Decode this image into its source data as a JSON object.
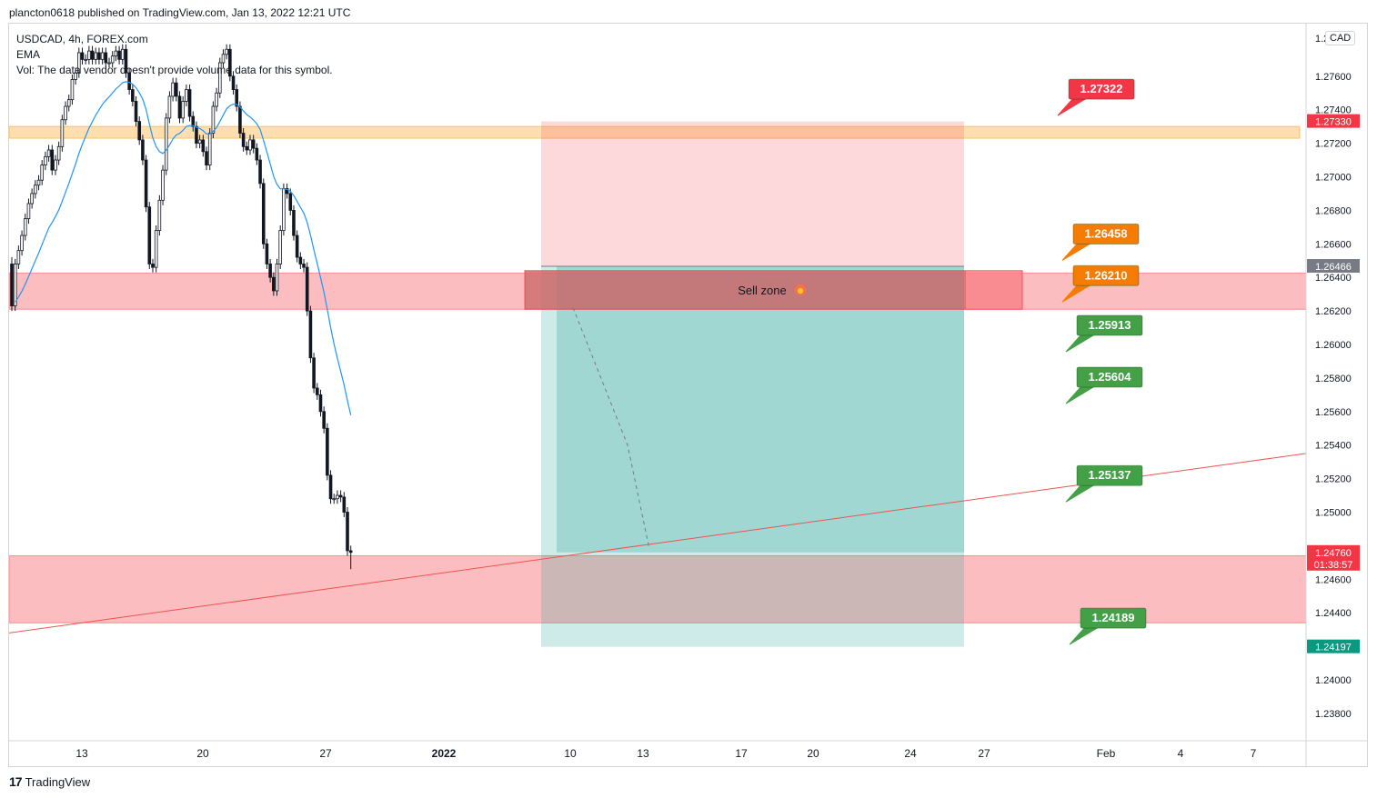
{
  "header": {
    "published_by": "plancton0618 published on TradingView.com, Jan 13, 2022 12:21 UTC"
  },
  "legend": {
    "symbol_line": "USDCAD, 4h, FOREX.com",
    "indicator": "EMA",
    "volume_note": "Vol: The data vendor doesn't provide volume data for this symbol."
  },
  "currency_badge": "CAD",
  "footer": {
    "brand": "TradingView",
    "logo_glyph": "17"
  },
  "colors": {
    "bull": "#131722",
    "bear": "#131722",
    "ema": "#2196f3",
    "sell_zone": "#f77c80",
    "profit_box": "#26a69a",
    "stop_box": "#f7525f",
    "support": "#ef5350",
    "orange_band": "#ffb74d",
    "label_green": "#43a047",
    "label_orange": "#f57c00",
    "label_red": "#f23645"
  },
  "chart_data": {
    "type": "candlestick",
    "title": "USDCAD, 4h, FOREX.com",
    "y_axis": {
      "side": "right",
      "range": [
        1.236,
        1.2776
      ],
      "ticks": [
        1.238,
        1.24,
        1.244,
        1.246,
        1.25,
        1.252,
        1.254,
        1.256,
        1.258,
        1.26,
        1.262,
        1.264,
        1.266,
        1.268,
        1.27,
        1.272,
        1.274,
        1.276
      ],
      "tick_labels": [
        "1.23800",
        "1.24000",
        "1.24400",
        "1.24600",
        "1.25000",
        "1.25200",
        "1.25400",
        "1.25600",
        "1.25800",
        "1.26000",
        "1.26200",
        "1.26400",
        "1.26600",
        "1.26800",
        "1.27000",
        "1.27200",
        "1.27400",
        "1.27600"
      ],
      "top_partial_label": "1.2"
    },
    "x_axis": {
      "ticks": [
        {
          "label": "13",
          "bold": false
        },
        {
          "label": "20",
          "bold": false
        },
        {
          "label": "27",
          "bold": false
        },
        {
          "label": "2022",
          "bold": true
        },
        {
          "label": "10",
          "bold": false
        },
        {
          "label": "13",
          "bold": false
        },
        {
          "label": "17",
          "bold": false
        },
        {
          "label": "20",
          "bold": false
        },
        {
          "label": "24",
          "bold": false
        },
        {
          "label": "27",
          "bold": false
        },
        {
          "label": "Feb",
          "bold": false
        },
        {
          "label": "4",
          "bold": false
        },
        {
          "label": "7",
          "bold": false
        }
      ]
    },
    "price_tags": [
      {
        "label": "1.27330",
        "value": 1.2733,
        "color": "#f23645"
      },
      {
        "label": "1.26466",
        "value": 1.26466,
        "color": "#787b86"
      },
      {
        "label": "1.24760",
        "sub": "01:38:57",
        "value": 1.2476,
        "color": "#f23645"
      },
      {
        "label": "1.24197",
        "value": 1.24197,
        "color": "#089981"
      }
    ],
    "callouts": [
      {
        "label": "1.27322",
        "value": 1.27322,
        "color": "#f23645"
      },
      {
        "label": "1.26458",
        "value": 1.26458,
        "color": "#f57c00"
      },
      {
        "label": "1.26210",
        "value": 1.2621,
        "color": "#f57c00"
      },
      {
        "label": "1.25913",
        "value": 1.25913,
        "color": "#43a047"
      },
      {
        "label": "1.25604",
        "value": 1.25604,
        "color": "#43a047"
      },
      {
        "label": "1.25137",
        "value": 1.25137,
        "color": "#43a047"
      },
      {
        "label": "1.24189",
        "value": 1.24189,
        "color": "#43a047"
      }
    ],
    "zones": [
      {
        "name": "resistance-band",
        "from": 1.2723,
        "to": 1.273,
        "color": "#ffb74d"
      },
      {
        "name": "supply-band",
        "from": 1.2621,
        "to": 1.26426,
        "color": "#f77c80"
      },
      {
        "name": "demand-band",
        "from": 1.2434,
        "to": 1.2474,
        "color": "#f77c80"
      }
    ],
    "sell_zone": {
      "label": "Sell zone",
      "from": 1.2621,
      "to": 1.2644
    },
    "short_position": {
      "entry": 1.26466,
      "stop": 1.2733,
      "target": 1.24197
    },
    "trendline": {
      "start": 1.2428,
      "end": 1.2535
    },
    "candles": {
      "open": [
        1.2648,
        1.2623,
        1.2648,
        1.2656,
        1.2665,
        1.2675,
        1.2684,
        1.269,
        1.2695,
        1.2698,
        1.2707,
        1.2712,
        1.2716,
        1.2704,
        1.271,
        1.2718,
        1.2734,
        1.2742,
        1.2746,
        1.2758,
        1.2762,
        1.2774,
        1.277,
        1.277,
        1.2775,
        1.277,
        1.2774,
        1.277,
        1.2774,
        1.2768,
        1.2768,
        1.2772,
        1.2775,
        1.277,
        1.2776,
        1.2762,
        1.2752,
        1.2745,
        1.2733,
        1.2722,
        1.271,
        1.2682,
        1.2648,
        1.2646,
        1.2668,
        1.2686,
        1.2704,
        1.2735,
        1.2748,
        1.2756,
        1.2748,
        1.2735,
        1.2745,
        1.2752,
        1.2736,
        1.273,
        1.272,
        1.2722,
        1.2715,
        1.2707,
        1.2726,
        1.2742,
        1.275,
        1.2768,
        1.2773,
        1.2776,
        1.276,
        1.2752,
        1.2742,
        1.2726,
        1.2718,
        1.2716,
        1.2722,
        1.2717,
        1.271,
        1.2696,
        1.266,
        1.2648,
        1.264,
        1.2632,
        1.2648,
        1.2668,
        1.2693,
        1.269,
        1.268,
        1.2665,
        1.2652,
        1.2648,
        1.2646,
        1.262,
        1.2592,
        1.2574,
        1.257,
        1.256,
        1.255,
        1.2522,
        1.2508,
        1.2508,
        1.251,
        1.2509,
        1.25,
        1.2477
      ],
      "close": [
        1.2623,
        1.2648,
        1.2656,
        1.2665,
        1.2675,
        1.2684,
        1.269,
        1.2695,
        1.2698,
        1.2707,
        1.2712,
        1.2716,
        1.2704,
        1.271,
        1.2718,
        1.2734,
        1.2742,
        1.2746,
        1.2758,
        1.2762,
        1.2774,
        1.277,
        1.277,
        1.2775,
        1.277,
        1.2774,
        1.277,
        1.2774,
        1.2768,
        1.2768,
        1.2772,
        1.2775,
        1.277,
        1.2776,
        1.2762,
        1.2752,
        1.2745,
        1.2733,
        1.2722,
        1.271,
        1.2682,
        1.2648,
        1.2646,
        1.2668,
        1.2686,
        1.2704,
        1.2735,
        1.2748,
        1.2756,
        1.2748,
        1.2735,
        1.2745,
        1.2752,
        1.2736,
        1.273,
        1.272,
        1.2722,
        1.2715,
        1.2707,
        1.2726,
        1.2742,
        1.275,
        1.2768,
        1.2773,
        1.2776,
        1.276,
        1.2752,
        1.2742,
        1.2726,
        1.2718,
        1.2716,
        1.2722,
        1.2717,
        1.271,
        1.2696,
        1.266,
        1.2648,
        1.264,
        1.2632,
        1.2648,
        1.2668,
        1.2693,
        1.269,
        1.268,
        1.2665,
        1.2652,
        1.2648,
        1.2646,
        1.262,
        1.2592,
        1.2574,
        1.257,
        1.256,
        1.255,
        1.2522,
        1.2508,
        1.2508,
        1.251,
        1.2509,
        1.25,
        1.2477,
        1.2476
      ],
      "high": [
        1.2652,
        1.2651,
        1.2659,
        1.2668,
        1.2678,
        1.2687,
        1.2693,
        1.2698,
        1.2701,
        1.271,
        1.2715,
        1.2719,
        1.2719,
        1.2713,
        1.2721,
        1.2737,
        1.2745,
        1.2749,
        1.2761,
        1.2765,
        1.2777,
        1.2777,
        1.2773,
        1.2778,
        1.2778,
        1.2777,
        1.2777,
        1.2777,
        1.2777,
        1.2771,
        1.2775,
        1.2778,
        1.2778,
        1.2779,
        1.2779,
        1.2765,
        1.2755,
        1.2748,
        1.2736,
        1.2725,
        1.2713,
        1.2685,
        1.2651,
        1.2671,
        1.2689,
        1.2707,
        1.2738,
        1.2751,
        1.2759,
        1.2759,
        1.2751,
        1.2748,
        1.2755,
        1.2755,
        1.2739,
        1.2733,
        1.2725,
        1.2725,
        1.2718,
        1.2729,
        1.2745,
        1.2753,
        1.2771,
        1.2776,
        1.2779,
        1.2779,
        1.2763,
        1.2755,
        1.2745,
        1.2729,
        1.2721,
        1.2725,
        1.2725,
        1.272,
        1.2713,
        1.2699,
        1.2663,
        1.2651,
        1.2643,
        1.2651,
        1.2671,
        1.2696,
        1.2696,
        1.2693,
        1.2683,
        1.2668,
        1.2655,
        1.2651,
        1.2649,
        1.2623,
        1.2595,
        1.2577,
        1.2573,
        1.2563,
        1.2553,
        1.2525,
        1.2511,
        1.2513,
        1.2513,
        1.2512,
        1.2503,
        1.248
      ],
      "low": [
        1.262,
        1.262,
        1.2645,
        1.2653,
        1.2662,
        1.2672,
        1.2681,
        1.2687,
        1.2692,
        1.2695,
        1.2704,
        1.2709,
        1.2701,
        1.2701,
        1.2707,
        1.2715,
        1.2731,
        1.2739,
        1.2743,
        1.2755,
        1.2759,
        1.2767,
        1.2767,
        1.2767,
        1.2767,
        1.2767,
        1.2767,
        1.2767,
        1.2765,
        1.2765,
        1.2765,
        1.2769,
        1.2767,
        1.2767,
        1.2759,
        1.2749,
        1.2742,
        1.273,
        1.2719,
        1.2707,
        1.2679,
        1.2645,
        1.2643,
        1.2643,
        1.2665,
        1.2683,
        1.2701,
        1.2732,
        1.2745,
        1.2745,
        1.2732,
        1.2732,
        1.2742,
        1.2733,
        1.2727,
        1.2717,
        1.2717,
        1.2712,
        1.2704,
        1.2704,
        1.2723,
        1.2739,
        1.2747,
        1.2765,
        1.277,
        1.2757,
        1.2749,
        1.2739,
        1.2723,
        1.2715,
        1.2713,
        1.2713,
        1.2714,
        1.2707,
        1.2693,
        1.2657,
        1.2645,
        1.2637,
        1.2629,
        1.2629,
        1.2645,
        1.2665,
        1.2687,
        1.2677,
        1.2662,
        1.2649,
        1.2645,
        1.2643,
        1.2617,
        1.2589,
        1.2571,
        1.2567,
        1.2557,
        1.2547,
        1.2519,
        1.2505,
        1.2505,
        1.2505,
        1.2506,
        1.2497,
        1.2474,
        1.2466
      ]
    }
  }
}
